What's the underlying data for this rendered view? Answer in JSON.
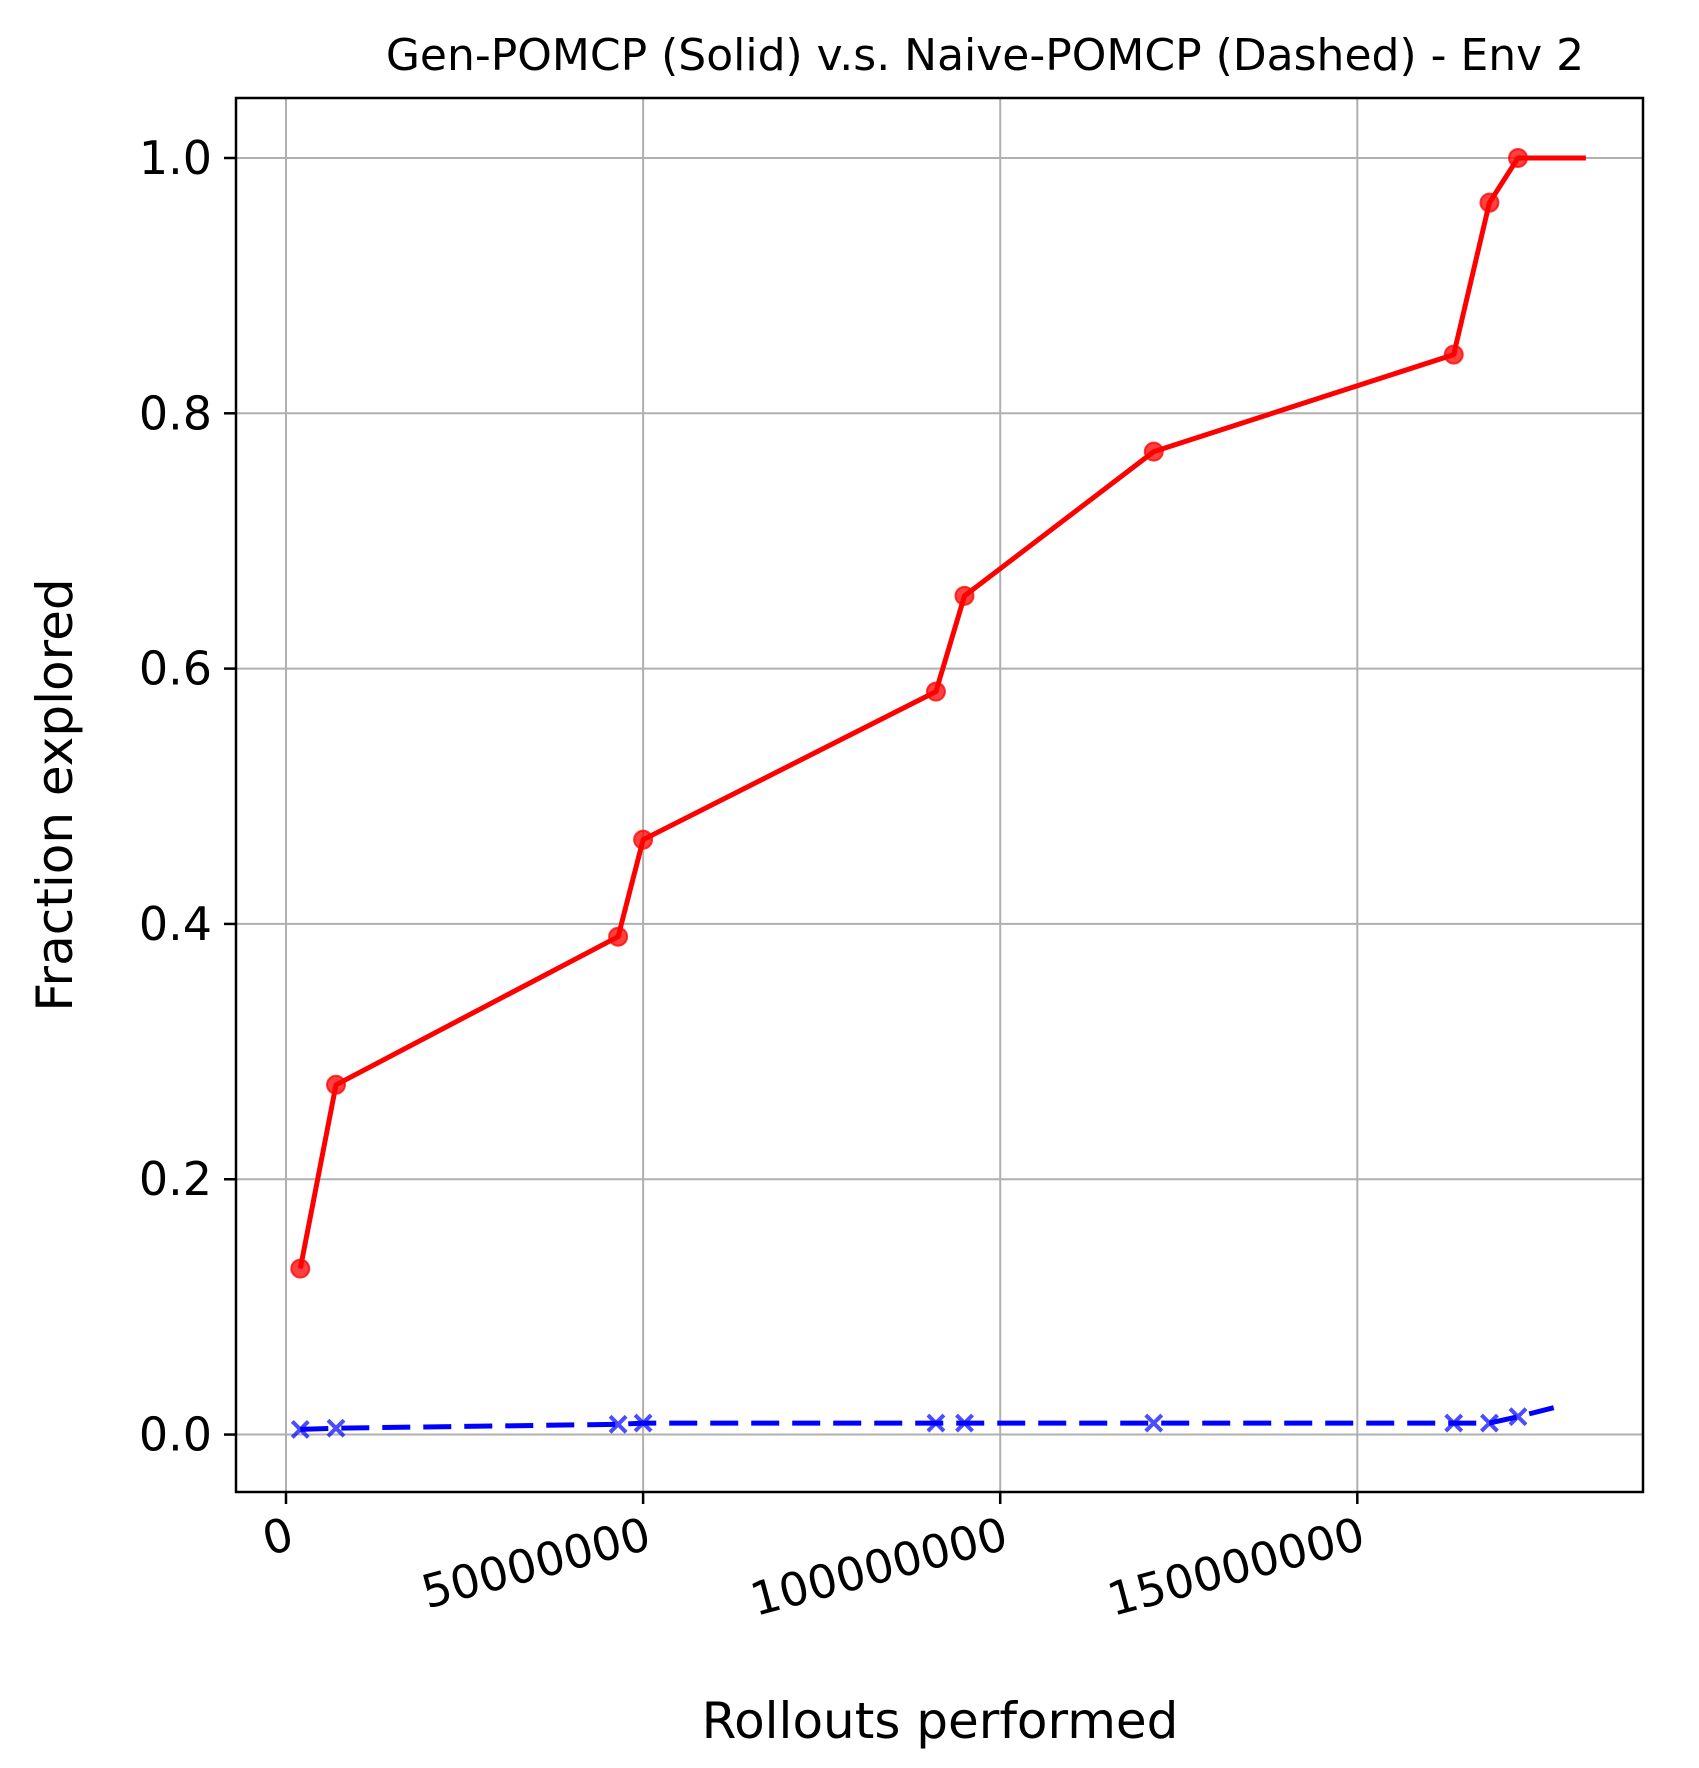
{
  "chart_data": {
    "type": "line",
    "title": "Gen-POMCP (Solid) v.s. Naive-POMCP (Dashed) - Env 2",
    "xlabel": "Rollouts performed",
    "ylabel": "Fraction explored",
    "xlim": [
      -7000000,
      190000000
    ],
    "ylim": [
      -0.045,
      1.047
    ],
    "x_ticks": [
      0,
      50000000,
      100000000,
      150000000
    ],
    "x_tick_labels": [
      "0",
      "50000000",
      "100000000",
      "150000000"
    ],
    "y_ticks": [
      0.0,
      0.2,
      0.4,
      0.6,
      0.8,
      1.0
    ],
    "y_tick_labels": [
      "0.0",
      "0.2",
      "0.4",
      "0.6",
      "0.8",
      "1.0"
    ],
    "grid": true,
    "series": [
      {
        "style": "solid",
        "marker": "circle",
        "color": "#ff0000",
        "x": [
          2000000,
          7000000,
          46500000,
          50000000,
          91000000,
          95000000,
          121500000,
          163500000,
          168500000,
          172500000,
          182000000
        ],
        "y": [
          0.13,
          0.274,
          0.39,
          0.466,
          0.582,
          0.657,
          0.77,
          0.846,
          0.965,
          1.0,
          1.0
        ],
        "markers": [
          true,
          true,
          true,
          true,
          true,
          true,
          true,
          true,
          true,
          true,
          false
        ]
      },
      {
        "style": "dashed",
        "marker": "x",
        "color": "#0000ff",
        "x": [
          2000000,
          7000000,
          46500000,
          50000000,
          91000000,
          95000000,
          121500000,
          163500000,
          168500000,
          172500000,
          177500000
        ],
        "y": [
          0.004,
          0.005,
          0.008,
          0.009,
          0.009,
          0.009,
          0.009,
          0.009,
          0.009,
          0.014,
          0.021
        ],
        "markers": [
          true,
          true,
          true,
          true,
          true,
          true,
          true,
          true,
          true,
          true,
          false
        ]
      }
    ]
  }
}
